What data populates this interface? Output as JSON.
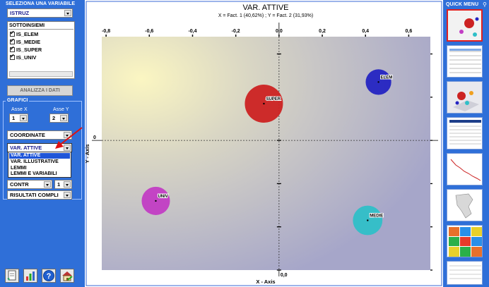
{
  "left_panel": {
    "variable_header": "SELEZIONA UNA VARIABILE",
    "variable_value": "ISTRUZ",
    "subsets_header": "SOTTOINSIEMI",
    "subsets": [
      "IS_ELEM",
      "IS_MEDIE",
      "IS_SUPER",
      "IS_UNIV"
    ],
    "analyze_button": "ANALIZZA I DATI",
    "charts_header": "GRAFICI",
    "axis_x_label": "Asse X",
    "axis_x_value": "1",
    "axis_y_label": "Asse Y",
    "axis_y_value": "2",
    "display_type": "COORDINATE",
    "dropdown_value": "VAR. ATTIVE",
    "dropdown_options": [
      "VAR. ATTIVE",
      "VAR. ILLUSTRATIVE",
      "LEMMI",
      "LEMMI E VARIABILI"
    ],
    "contr_value": "CONTR",
    "contr_number": "1",
    "results_value": "RISULTATI COMPLI"
  },
  "toolbar_icons": [
    "new-sheet-icon",
    "chart-icon",
    "help-icon",
    "home-icon"
  ],
  "right_panel": {
    "title": "QUICK MENU"
  },
  "colors": {
    "panel_bg": "#2f6fd8",
    "arrow": "#dd1111",
    "elem": "#2424c2",
    "super": "#cc2222",
    "univ": "#c23dc4",
    "medie": "#2fbfc8"
  },
  "chart_data": {
    "type": "scatter",
    "title": "VAR. ATTIVE",
    "subtitle": "X = Fact. 1 (40,62%) ; Y = Fact. 2 (31,93%)",
    "xlabel": "X - Axis",
    "ylabel": "Y - Axis",
    "xlim": [
      -0.82,
      0.7
    ],
    "ylim": [
      -0.6,
      0.48
    ],
    "xticks": [
      -0.8,
      -0.6,
      -0.4,
      -0.2,
      0,
      0.2,
      0.4,
      0.6
    ],
    "xtick_labels": [
      "-0,8",
      "-0,6",
      "-0,4",
      "-0,2",
      "0,0",
      "0,2",
      "0,4",
      "0,6"
    ],
    "yticks": [
      -0.6,
      -0.4,
      -0.2,
      0,
      0.2,
      0.4
    ],
    "grid": false,
    "points": [
      {
        "label": "ELEM",
        "x": 0.46,
        "y": 0.27,
        "size": 0.45,
        "color": "#2424c2"
      },
      {
        "label": "SUPER",
        "x": -0.07,
        "y": 0.17,
        "size": 1.0,
        "color": "#cc2222"
      },
      {
        "label": "UNIV",
        "x": -0.57,
        "y": -0.28,
        "size": 0.55,
        "color": "#c23dc4"
      },
      {
        "label": "MEDIE",
        "x": 0.41,
        "y": -0.37,
        "size": 0.6,
        "color": "#2fbfc8"
      }
    ]
  }
}
